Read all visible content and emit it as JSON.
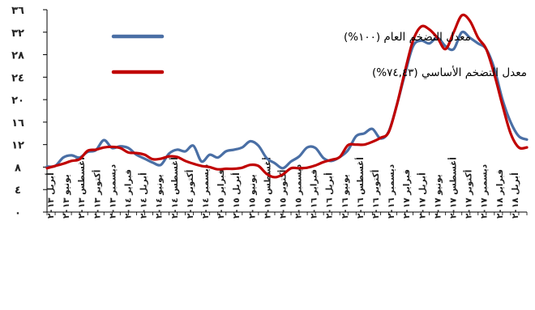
{
  "chart_data": {
    "type": "line",
    "title": "",
    "xlabel": "",
    "ylabel": "",
    "ylim": [
      0,
      36
    ],
    "y_ticks": [
      "٠",
      "٤",
      "٨",
      "١٢",
      "١٦",
      "٢٠",
      "٢٤",
      "٢٨",
      "٣٢",
      "٣٦"
    ],
    "y_tick_values": [
      0,
      4,
      8,
      12,
      16,
      20,
      24,
      28,
      32,
      36
    ],
    "grid": false,
    "legend_position": "top-center",
    "x_tick_labels": [
      "أبريل ٢٠١٣",
      "يونيو ٢٠١٣",
      "أغسطس ٢٠١٣",
      "أكتوبر ٢٠١٣",
      "ديسمبر ٢٠١٣",
      "فبراير ٢٠١٤",
      "أبريل ٢٠١٤",
      "يونيو ٢٠١٤",
      "أغسطس ٢٠١٤",
      "أكتوبر ٢٠١٤",
      "ديسمبر ٢٠١٤",
      "فبراير ٢٠١٥",
      "أبريل ٢٠١٥",
      "يونيو ٢٠١٥",
      "أغسطس ٢٠١٥",
      "أكتوبر ٢٠١٥",
      "ديسمبر ٢٠١٥",
      "فبراير ٢٠١٦",
      "أبريل ٢٠١٦",
      "يونيو ٢٠١٦",
      "أغسطس ٢٠١٦",
      "أكتوبر ٢٠١٦",
      "ديسمبر ٢٠١٦",
      "فبراير ٢٠١٧",
      "أبريل ٢٠١٧",
      "يونيو ٢٠١٧",
      "أغسطس ٢٠١٧",
      "أكتوبر ٢٠١٧",
      "ديسمبر ٢٠١٧",
      "فبراير ٢٠١٨",
      "أبريل ٢٠١٨"
    ],
    "series": [
      {
        "name": "معدل التضخم العام (١٠٠%)",
        "color": "#4a6fa5",
        "values": [
          8.1,
          8.2,
          9.7,
          10.1,
          9.7,
          10.7,
          11.0,
          12.8,
          11.4,
          11.7,
          11.4,
          10.2,
          9.5,
          8.8,
          8.4,
          10.4,
          11.1,
          10.8,
          11.8,
          9.0,
          10.2,
          9.7,
          10.8,
          11.1,
          11.5,
          12.6,
          11.8,
          9.6,
          8.7,
          7.8,
          9.0,
          9.9,
          11.5,
          11.4,
          9.6,
          9.1,
          9.8,
          11.0,
          13.5,
          14.0,
          14.8,
          13.1,
          14.3,
          19.0,
          24.5,
          29.5,
          30.5,
          30.0,
          31.0,
          29.5,
          29.0,
          32.0,
          31.0,
          30.0,
          29.0,
          25.5,
          20.0,
          16.0,
          13.5,
          12.9
        ]
      },
      {
        "name": "معدل التضخم الأساسي (٧٤,٤٣%)",
        "color": "#c00000",
        "values": [
          7.8,
          8.2,
          8.6,
          9.1,
          9.4,
          10.9,
          11.1,
          11.5,
          11.6,
          11.4,
          10.6,
          10.5,
          10.2,
          9.4,
          9.5,
          9.9,
          9.8,
          9.1,
          8.6,
          8.2,
          8.0,
          7.6,
          7.7,
          7.7,
          7.9,
          8.4,
          8.2,
          6.8,
          6.2,
          6.7,
          7.8,
          7.8,
          7.9,
          8.3,
          8.9,
          9.3,
          9.8,
          11.9,
          12.0,
          12.0,
          12.5,
          13.2,
          14.2,
          19.0,
          25.0,
          30.5,
          33.0,
          32.5,
          31.0,
          29.0,
          32.0,
          35.0,
          34.0,
          31.0,
          29.0,
          24.5,
          19.0,
          14.0,
          11.5,
          11.5
        ]
      }
    ]
  }
}
